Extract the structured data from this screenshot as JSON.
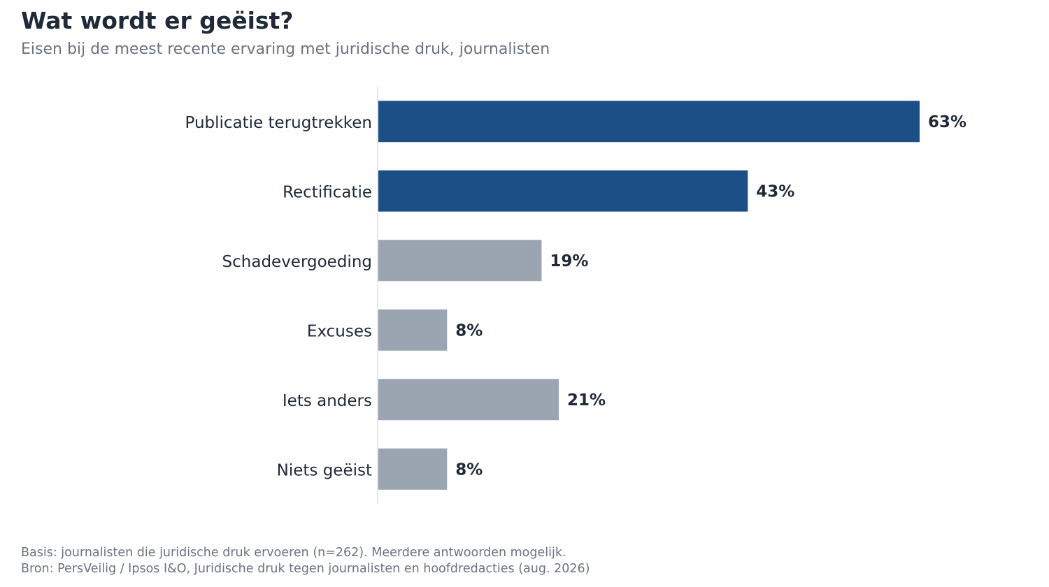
{
  "chart_data": {
    "type": "bar",
    "orientation": "horizontal",
    "title": "Wat wordt er geëist?",
    "subtitle": "Eisen bij de meest recente ervaring met juridische druk, journalisten",
    "categories": [
      "Publicatie terugtrekken",
      "Rectificatie",
      "Schadevergoeding",
      "Excuses",
      "Iets anders",
      "Niets geëist"
    ],
    "values": [
      63,
      43,
      19,
      8,
      21,
      8
    ],
    "value_labels": [
      "63%",
      "43%",
      "19%",
      "8%",
      "21%",
      "8%"
    ],
    "unit": "%",
    "xlim": [
      0,
      70
    ],
    "grid": false,
    "highlight_color": "#1d4f87",
    "base_color": "#9aa5b1",
    "highlighted_categories": [
      "Publicatie terugtrekken",
      "Rectificatie"
    ]
  },
  "footer": {
    "basis": "Basis: journalisten die juridische druk ervoeren (n=262). Meerdere antwoorden mogelijk.",
    "source": "Bron: PersVeilig / Ipsos I&O, Juridische druk tegen journalisten en hoofdredacties (aug. 2026)"
  }
}
